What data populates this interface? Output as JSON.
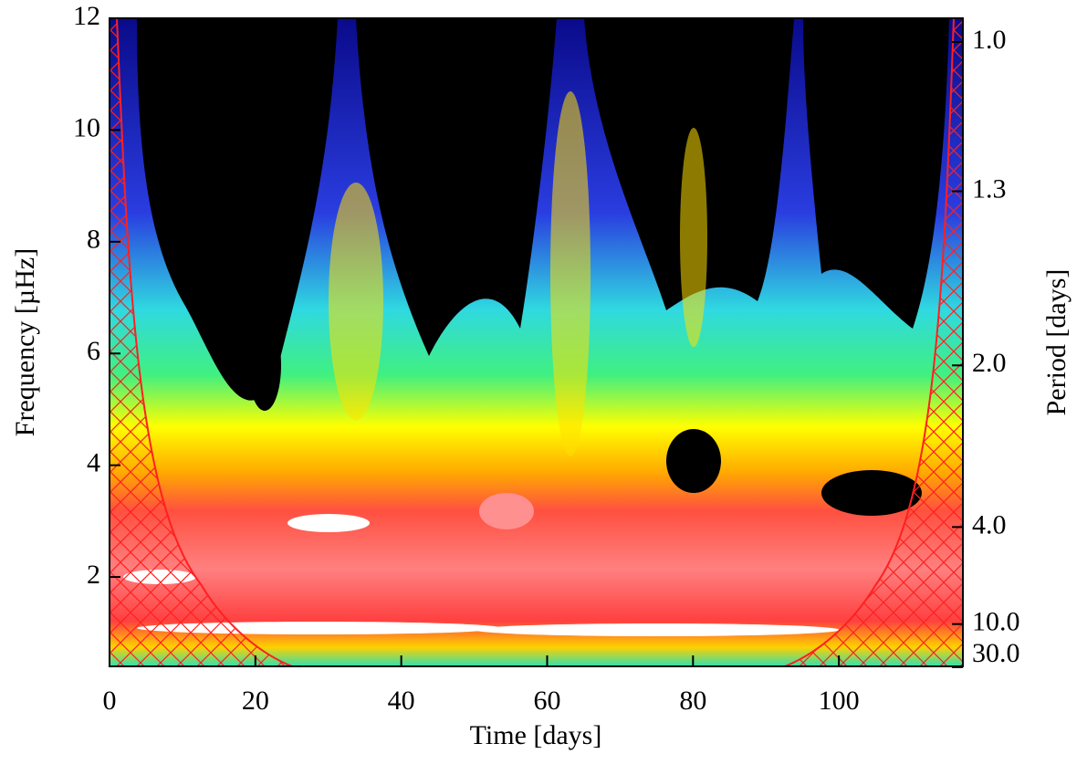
{
  "chart_data": {
    "type": "contour",
    "xlabel": "Time [days]",
    "ylabel": "Frequency [µHz]",
    "y2label": "Period [days]",
    "xlim": [
      0,
      117
    ],
    "xticks": [
      0,
      20,
      40,
      60,
      80,
      100
    ],
    "ylim": [
      0.4,
      12
    ],
    "yticks": [
      2,
      4,
      6,
      8,
      10,
      12
    ],
    "y2ticks": [
      {
        "value": 1,
        "label": "1.0"
      },
      1.3,
      {
        "value": 2,
        "label": "2.0"
      },
      {
        "value": 4,
        "label": "4.0"
      },
      {
        "value": 10,
        "label": "10.0"
      },
      {
        "value": 30,
        "label": "30.0"
      }
    ]
  }
}
